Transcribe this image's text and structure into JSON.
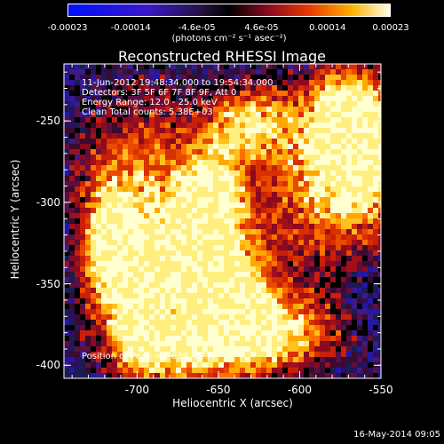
{
  "colorbar": {
    "ticks": [
      "-0.00023",
      "-0.00014",
      "-4.6e-05",
      "4.6e-05",
      "0.00014",
      "0.00023"
    ],
    "tick_values": [
      -0.00023,
      -0.00014,
      -4.6e-05,
      4.6e-05,
      0.00014,
      0.00023
    ],
    "range": [
      -0.00023,
      0.00023
    ],
    "unit": "(photons cm⁻² s⁻¹ asec⁻²)"
  },
  "image": {
    "title": "Reconstructed RHESSI Image",
    "info": [
      "11-Jun-2012 19:48:34.000 to 19:54:34.000",
      "Detectors: 3F 5F 6F 7F 8F 9F, Att 0",
      "Energy Range: 12.0 - 25.0 keV",
      "Clean     Total counts: 5.38E+03"
    ],
    "peak_label": "Position of Peak = [-639,-371]",
    "xlabel": "Heliocentric X (arcsec)",
    "ylabel": "Heliocentric Y (arcsec)",
    "x_ticks": [
      "-700",
      "-650",
      "-600",
      "-550"
    ],
    "x_tick_values": [
      -700,
      -650,
      -600,
      -550
    ],
    "y_ticks": [
      "-250",
      "-300",
      "-350",
      "-400"
    ],
    "y_tick_values": [
      -250,
      -300,
      -350,
      -400
    ],
    "x_range": [
      -745,
      -550
    ],
    "y_range": [
      -408,
      -215
    ]
  },
  "timestamp": "16-May-2014 09:05"
}
